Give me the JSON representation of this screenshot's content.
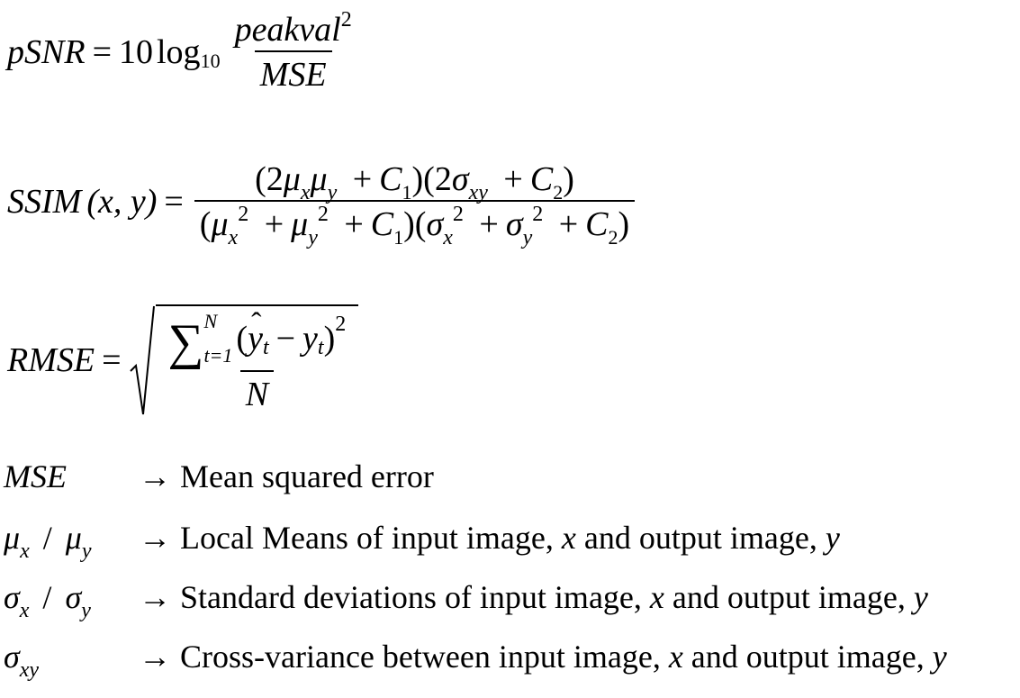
{
  "psnr": {
    "lhs": "pSNR",
    "equals": "=",
    "coef": "10",
    "log": "log",
    "log_base": "10",
    "numerator": "peakval",
    "exponent": "2",
    "denominator": "MSE"
  },
  "ssim": {
    "lhs": "SSIM",
    "args": "(x, y)",
    "equals": "=",
    "mu": "μ",
    "sigma": "σ",
    "x": "x",
    "y": "y",
    "xy": "xy",
    "C": "C",
    "one": "1",
    "two": "2",
    "plus": "+",
    "lparen": "(",
    "rparen": ")",
    "rparen_lparen": ")(",
    "lparen_two": "(2",
    "rparen_two": ")(2",
    "squared": "2"
  },
  "rmse": {
    "lhs": "RMSE",
    "equals": "=",
    "sum_upper": "N",
    "sum_lower": "t=1",
    "yhat": "y",
    "y": "y",
    "t": "t",
    "minus": "−",
    "lparen": "(",
    "rparen": ")",
    "exponent": "2",
    "denominator": "N"
  },
  "definitions": [
    {
      "symbol": "MSE",
      "arrow": "→",
      "text": "Mean squared error"
    },
    {
      "symbol_a": "μ",
      "sub_a": "x",
      "slash": "/",
      "symbol_b": "μ",
      "sub_b": "y",
      "arrow": "→",
      "text_1": "Local Means of input image, ",
      "var_x": "x",
      "text_2": " and output image, ",
      "var_y": "y"
    },
    {
      "symbol_a": "σ",
      "sub_a": "x",
      "slash": "/",
      "symbol_b": "σ",
      "sub_b": "y",
      "arrow": "→",
      "text_1": "Standard deviations of input image, ",
      "var_x": "x",
      "text_2": " and output image, ",
      "var_y": "y"
    },
    {
      "symbol_a": "σ",
      "sub_a": "xy",
      "arrow": "→",
      "text_1": "Cross-variance between input image, ",
      "var_x": "x",
      "text_2": " and output image, ",
      "var_y": "y"
    }
  ]
}
